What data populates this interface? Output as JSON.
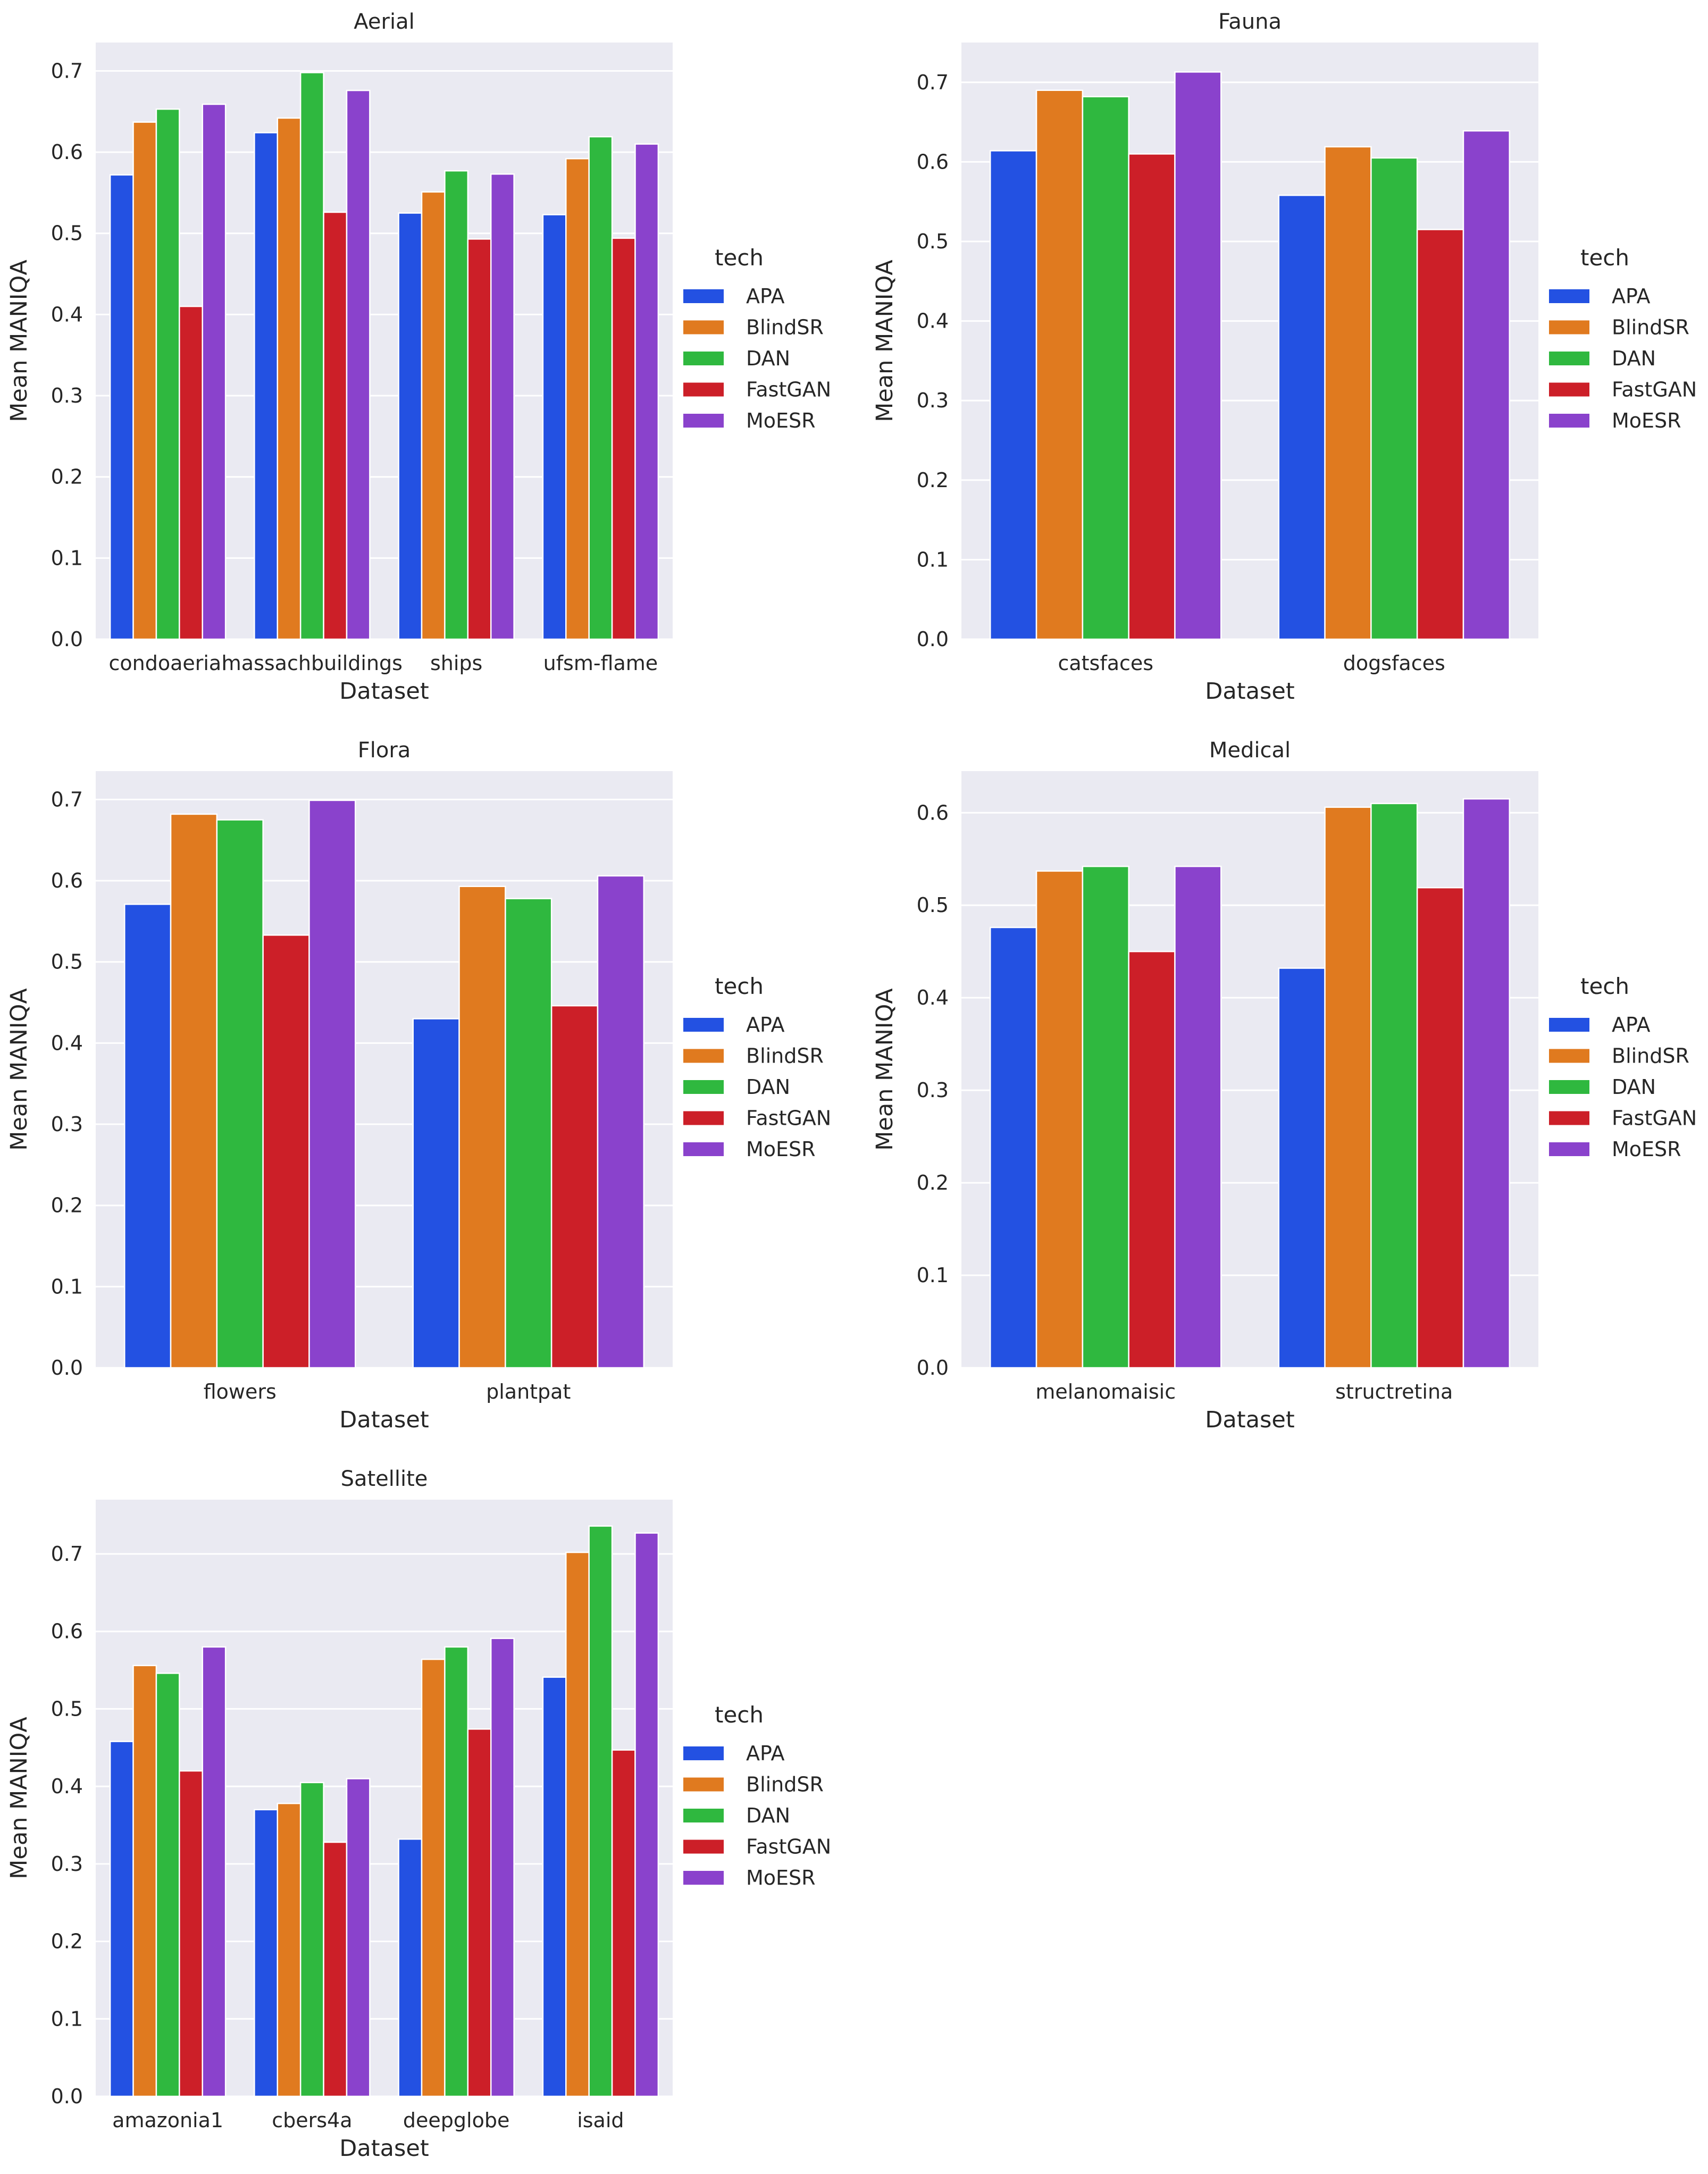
{
  "legend": {
    "title": "tech",
    "entries": [
      "APA",
      "BlindSR",
      "DAN",
      "FastGAN",
      "MoESR"
    ]
  },
  "colors": {
    "APA": "#2351e2",
    "BlindSR": "#e07a1f",
    "DAN": "#2fb83f",
    "FastGAN": "#cc1f28",
    "MoESR": "#8a42cc",
    "panel_bg": "#eaeaf2",
    "grid": "#ffffff"
  },
  "chart_data": [
    {
      "type": "bar",
      "title": "Aerial",
      "xlabel": "Dataset",
      "ylabel": "Mean MANIQA",
      "ylim": [
        0,
        0.735
      ],
      "yticks": [
        0.0,
        0.1,
        0.2,
        0.3,
        0.4,
        0.5,
        0.6,
        0.7
      ],
      "categories": [
        "condoaerial",
        "massachbuildings",
        "ships",
        "ufsm-flame"
      ],
      "series": [
        {
          "name": "APA",
          "values": [
            0.572,
            0.624,
            0.525,
            0.523
          ]
        },
        {
          "name": "BlindSR",
          "values": [
            0.637,
            0.642,
            0.551,
            0.592
          ]
        },
        {
          "name": "DAN",
          "values": [
            0.653,
            0.698,
            0.577,
            0.619
          ]
        },
        {
          "name": "FastGAN",
          "values": [
            0.41,
            0.526,
            0.493,
            0.494
          ]
        },
        {
          "name": "MoESR",
          "values": [
            0.659,
            0.676,
            0.573,
            0.61
          ]
        }
      ],
      "grid": true,
      "legend": "right"
    },
    {
      "type": "bar",
      "title": "Fauna",
      "xlabel": "Dataset",
      "ylabel": "Mean MANIQA",
      "ylim": [
        0,
        0.75
      ],
      "yticks": [
        0.0,
        0.1,
        0.2,
        0.3,
        0.4,
        0.5,
        0.6,
        0.7
      ],
      "categories": [
        "catsfaces",
        "dogsfaces"
      ],
      "series": [
        {
          "name": "APA",
          "values": [
            0.614,
            0.558
          ]
        },
        {
          "name": "BlindSR",
          "values": [
            0.69,
            0.619
          ]
        },
        {
          "name": "DAN",
          "values": [
            0.682,
            0.605
          ]
        },
        {
          "name": "FastGAN",
          "values": [
            0.61,
            0.515
          ]
        },
        {
          "name": "MoESR",
          "values": [
            0.713,
            0.639
          ]
        }
      ],
      "grid": true,
      "legend": "right"
    },
    {
      "type": "bar",
      "title": "Flora",
      "xlabel": "Dataset",
      "ylabel": "Mean MANIQA",
      "ylim": [
        0,
        0.735
      ],
      "yticks": [
        0.0,
        0.1,
        0.2,
        0.3,
        0.4,
        0.5,
        0.6,
        0.7
      ],
      "categories": [
        "flowers",
        "plantpat"
      ],
      "series": [
        {
          "name": "APA",
          "values": [
            0.571,
            0.43
          ]
        },
        {
          "name": "BlindSR",
          "values": [
            0.682,
            0.593
          ]
        },
        {
          "name": "DAN",
          "values": [
            0.675,
            0.578
          ]
        },
        {
          "name": "FastGAN",
          "values": [
            0.533,
            0.446
          ]
        },
        {
          "name": "MoESR",
          "values": [
            0.699,
            0.606
          ]
        }
      ],
      "grid": true,
      "legend": "right"
    },
    {
      "type": "bar",
      "title": "Medical",
      "xlabel": "Dataset",
      "ylabel": "Mean MANIQA",
      "ylim": [
        0,
        0.645
      ],
      "yticks": [
        0.0,
        0.1,
        0.2,
        0.3,
        0.4,
        0.5,
        0.6
      ],
      "categories": [
        "melanomaisic",
        "structretina"
      ],
      "series": [
        {
          "name": "APA",
          "values": [
            0.476,
            0.432
          ]
        },
        {
          "name": "BlindSR",
          "values": [
            0.537,
            0.606
          ]
        },
        {
          "name": "DAN",
          "values": [
            0.542,
            0.61
          ]
        },
        {
          "name": "FastGAN",
          "values": [
            0.45,
            0.519
          ]
        },
        {
          "name": "MoESR",
          "values": [
            0.542,
            0.615
          ]
        }
      ],
      "grid": true,
      "legend": "right"
    },
    {
      "type": "bar",
      "title": "Satellite",
      "xlabel": "Dataset",
      "ylabel": "Mean MANIQA",
      "ylim": [
        0,
        0.77
      ],
      "yticks": [
        0.0,
        0.1,
        0.2,
        0.3,
        0.4,
        0.5,
        0.6,
        0.7
      ],
      "categories": [
        "amazonia1",
        "cbers4a",
        "deepglobe",
        "isaid"
      ],
      "series": [
        {
          "name": "APA",
          "values": [
            0.458,
            0.37,
            0.332,
            0.541
          ]
        },
        {
          "name": "BlindSR",
          "values": [
            0.556,
            0.378,
            0.564,
            0.702
          ]
        },
        {
          "name": "DAN",
          "values": [
            0.546,
            0.405,
            0.58,
            0.736
          ]
        },
        {
          "name": "FastGAN",
          "values": [
            0.42,
            0.328,
            0.474,
            0.447
          ]
        },
        {
          "name": "MoESR",
          "values": [
            0.58,
            0.41,
            0.591,
            0.727
          ]
        }
      ],
      "grid": true,
      "legend": "right"
    }
  ]
}
